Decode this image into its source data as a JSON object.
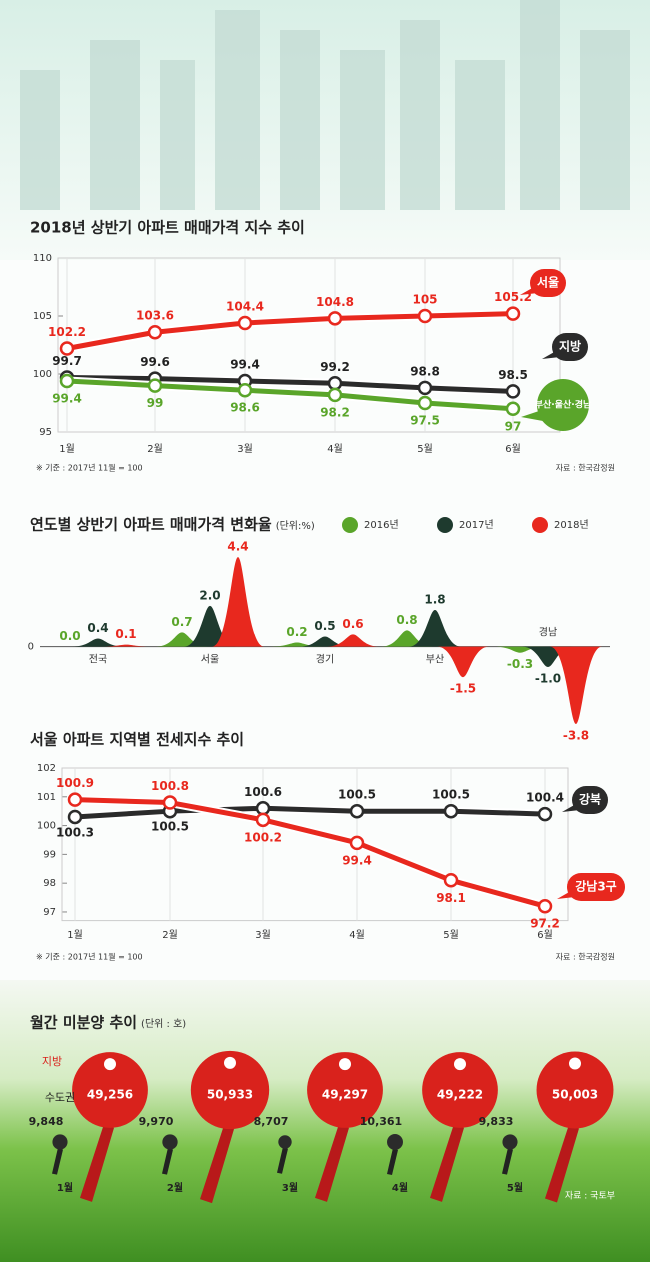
{
  "chart_data": [
    {
      "type": "line",
      "title": "2018년 상반기 아파트 매매가격 지수 추이",
      "categories": [
        "1월",
        "2월",
        "3월",
        "4월",
        "5월",
        "6월"
      ],
      "series": [
        {
          "name": "서울",
          "color": "#e8281e",
          "values": [
            102.2,
            103.6,
            104.4,
            104.8,
            105,
            105.2
          ]
        },
        {
          "name": "지방",
          "color": "#2b2b2b",
          "values": [
            99.7,
            99.6,
            99.4,
            99.2,
            98.8,
            98.5
          ]
        },
        {
          "name": "부산·울산·경남",
          "color": "#5aa52a",
          "values": [
            99.4,
            99,
            98.6,
            98.2,
            97.5,
            97
          ]
        }
      ],
      "ylim": [
        95,
        110
      ],
      "yticks": [
        95,
        100,
        105,
        110
      ],
      "note": "※ 기준 : 2017년 11월 = 100",
      "source": "자료 : 한국감정원"
    },
    {
      "type": "area",
      "title": "연도별 상반기 아파트 매매가격 변화율",
      "subtitle": "(단위:%)",
      "categories": [
        "전국",
        "서울",
        "경기",
        "부산",
        "경남"
      ],
      "series": [
        {
          "name": "2016년",
          "color": "#5aa52a",
          "values": [
            0,
            0.7,
            0.2,
            0.8,
            -0.3
          ],
          "value_labels": [
            "0.0",
            "0.7",
            "0.2",
            "0.8",
            "-0.3"
          ]
        },
        {
          "name": "2017년",
          "color": "#1e3a2e",
          "values": [
            0.4,
            2,
            0.5,
            1.8,
            -1
          ],
          "value_labels": [
            "0.4",
            "2.0",
            "0.5",
            "1.8",
            "-1.0"
          ]
        },
        {
          "name": "2018년",
          "color": "#e8281e",
          "values": [
            0.1,
            4.4,
            0.6,
            -1.5,
            -3.8
          ],
          "value_labels": [
            "0.1",
            "4.4",
            "0.6",
            "-1.5",
            "-3.8"
          ]
        }
      ],
      "ylim": [
        -3.9,
        4.6
      ],
      "yticks": [
        0
      ]
    },
    {
      "type": "line",
      "title": "서울 아파트 지역별 전세지수 추이",
      "categories": [
        "1월",
        "2월",
        "3월",
        "4월",
        "5월",
        "6월"
      ],
      "series": [
        {
          "name": "강북",
          "color": "#2b2b2b",
          "values": [
            100.3,
            100.5,
            100.6,
            100.5,
            100.5,
            100.4
          ]
        },
        {
          "name": "강남3구",
          "color": "#e8281e",
          "values": [
            100.9,
            100.8,
            100.2,
            99.4,
            98.1,
            97.2
          ]
        }
      ],
      "ylim": [
        96.7,
        102
      ],
      "yticks": [
        97,
        98,
        99,
        100,
        101,
        102
      ],
      "note": "※ 기준 : 2017년 11월 = 100",
      "source": "자료 : 한국감정원"
    },
    {
      "type": "pictograph",
      "title": "월간 미분양 추이",
      "subtitle": "(단위 : 호)",
      "categories": [
        "1월",
        "2월",
        "3월",
        "4월",
        "5월"
      ],
      "series": [
        {
          "name": "지방",
          "color": "#d9221c",
          "values": [
            49256,
            50933,
            49297,
            49222,
            50003
          ],
          "value_labels": [
            "49,256",
            "50,933",
            "49,297",
            "49,222",
            "50,003"
          ]
        },
        {
          "name": "수도권",
          "color": "#2b2b2b",
          "values": [
            9848,
            9970,
            8707,
            10361,
            9833
          ],
          "value_labels": [
            "9,848",
            "9,970",
            "8,707",
            "10,361",
            "9,833"
          ]
        }
      ],
      "source": "자료 : 국토부"
    }
  ]
}
